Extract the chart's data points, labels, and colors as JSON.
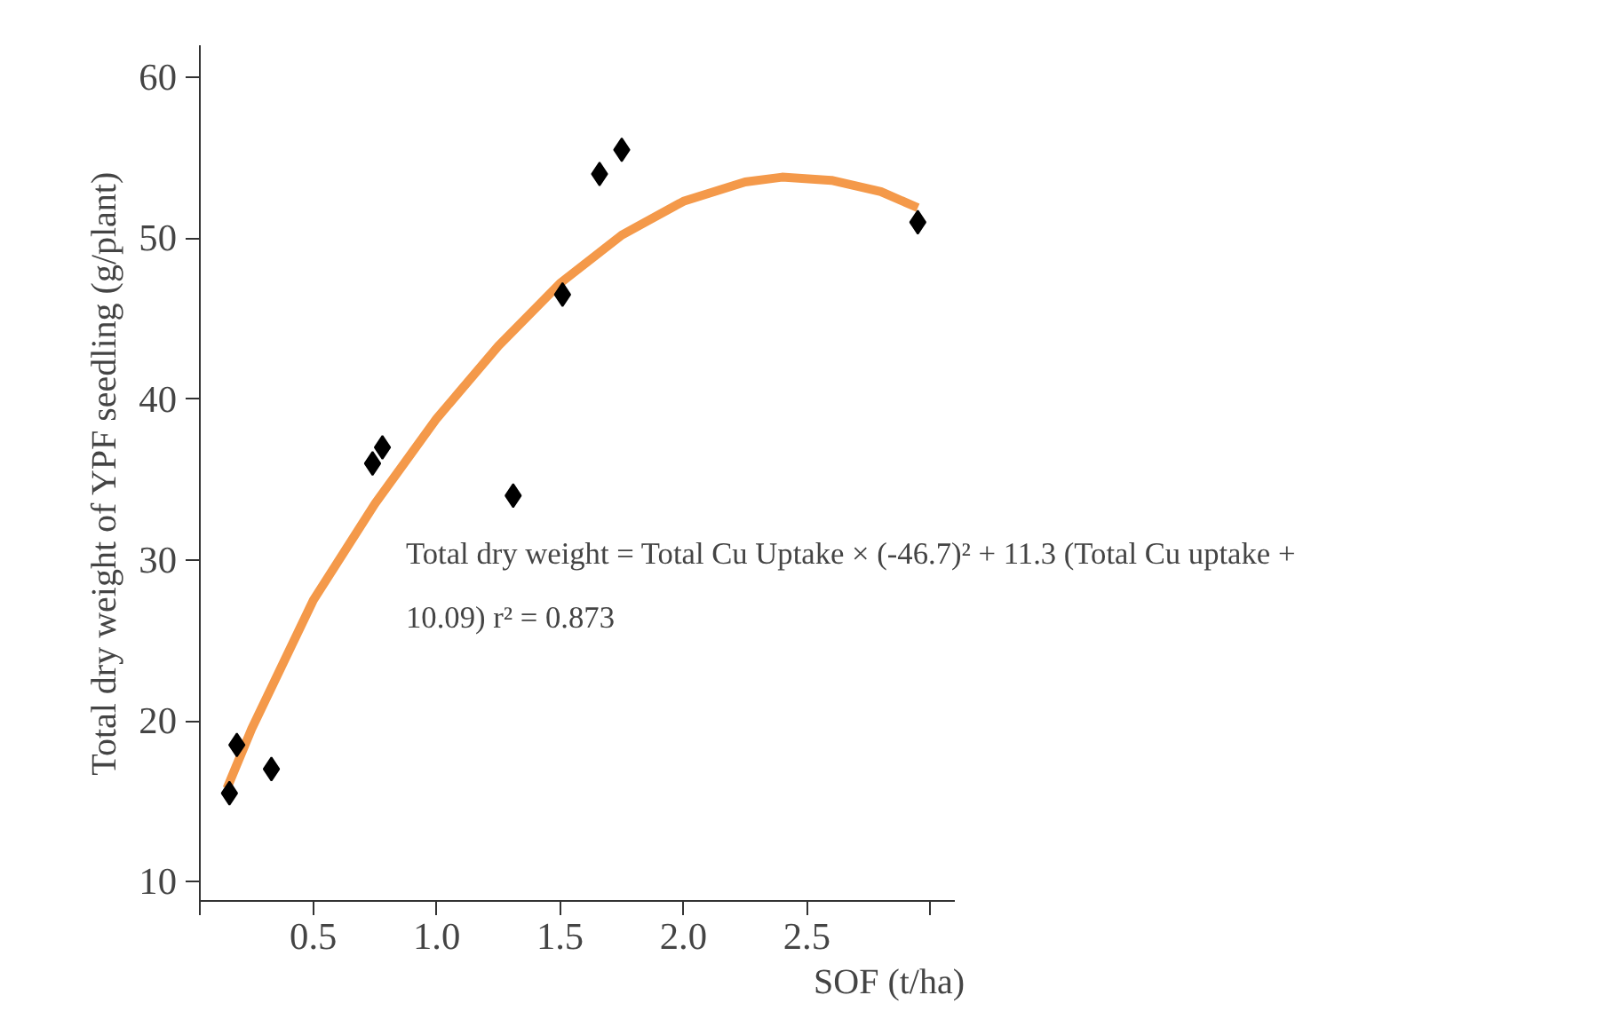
{
  "chart_data": {
    "type": "scatter",
    "xlabel": "SOF (t/ha)",
    "ylabel": "Total dry weight of YPF seedling (g/plant)",
    "xlim": [
      0.04,
      3.1
    ],
    "ylim": [
      8.8,
      62
    ],
    "xticks": [
      {
        "value": 0.04,
        "label": null
      },
      0.5,
      {
        "value": 1,
        "label": "1.0"
      },
      1.5,
      {
        "value": 2,
        "label": "2.0"
      },
      2.5,
      {
        "value": 3.0,
        "label": null
      }
    ],
    "yticks": [
      10,
      20,
      30,
      40,
      50,
      60
    ],
    "grid": false,
    "annotations": [
      "Total dry weight = Total Cu Uptake × (-46.7)² + 11.3 (Total Cu uptake +\n10.09) r² = 0.873"
    ],
    "series": [
      {
        "type": "line",
        "marker": "none",
        "color": "#f4994a",
        "x": [
          0.15,
          0.25,
          0.5,
          0.75,
          1.0,
          1.25,
          1.5,
          1.75,
          2.0,
          2.25,
          2.4,
          2.6,
          2.8,
          2.95
        ],
        "values": [
          15.8,
          19.5,
          27.5,
          33.5,
          38.8,
          43.3,
          47.2,
          50.2,
          52.3,
          53.5,
          53.8,
          53.6,
          52.9,
          51.9
        ]
      },
      {
        "marker": "diamond",
        "color": "#000000",
        "x": [
          0.16,
          0.19,
          0.33,
          0.74,
          0.78,
          1.31,
          1.51,
          1.66,
          1.75,
          2.95
        ],
        "values": [
          15.5,
          18.5,
          17,
          36,
          37,
          34,
          46.5,
          54,
          55.5,
          51
        ]
      }
    ]
  }
}
